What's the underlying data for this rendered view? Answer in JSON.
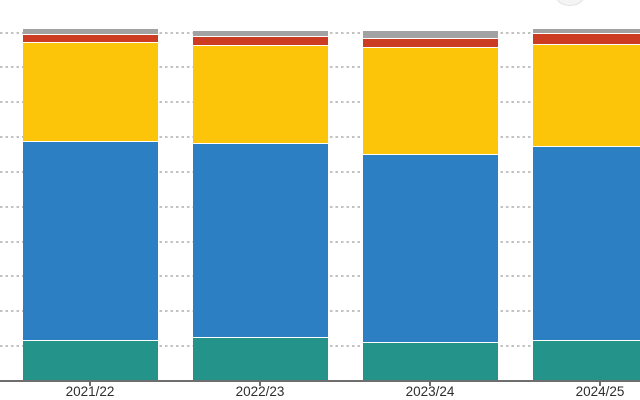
{
  "chart_data": {
    "type": "bar",
    "variant": "stacked",
    "title": "",
    "xlabel": "",
    "ylabel": "",
    "ylim": [
      0,
      100
    ],
    "y_gridline_step": 10,
    "grid": "dotted-horizontal",
    "legend_position": "not-visible-cropped",
    "y_axis_tick_labels_visible": false,
    "categories": [
      "2021/22",
      "2022/23",
      "2023/24",
      "2024/25"
    ],
    "series_order": "top-to-bottom",
    "series": [
      {
        "name": "gray-top-segment",
        "color": "#a2a2a2",
        "values": [
          1.3,
          1.4,
          2.0,
          1.1
        ]
      },
      {
        "name": "red-segment",
        "color": "#cc3c22",
        "values": [
          2.2,
          2.7,
          2.6,
          3.4
        ]
      },
      {
        "name": "yellow-segment",
        "color": "#fdc50a",
        "values": [
          28.4,
          28.0,
          30.8,
          29.3
        ]
      },
      {
        "name": "blue-segment",
        "color": "#2d7fc3",
        "values": [
          57.1,
          55.8,
          53.8,
          55.5
        ]
      },
      {
        "name": "teal-bottom-segment",
        "color": "#24948a",
        "values": [
          11.6,
          12.3,
          11.0,
          11.5
        ]
      }
    ],
    "colors": {
      "background": "#ffffff",
      "gridline": "#c2c2c2",
      "axis_line": "#6e6e6e",
      "tick": "#6e6e6e",
      "tick_label_text": "#2e2e2e",
      "segment_separator": "#ffffff"
    }
  }
}
